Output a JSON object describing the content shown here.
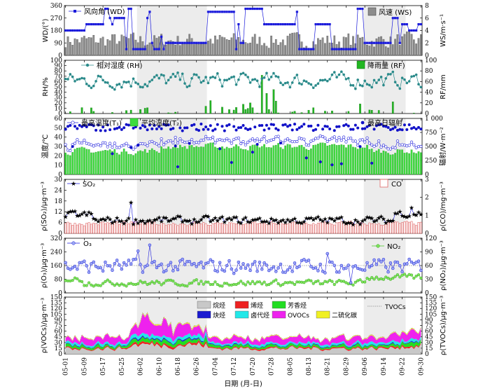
{
  "chart_data": {
    "type": "multi-panel time series",
    "xlabel": "日期 (月-日)",
    "x_ticks": [
      "05-01",
      "05-09",
      "05-17",
      "05-25",
      "06-02",
      "06-10",
      "06-18",
      "06-26",
      "07-04",
      "07-12",
      "07-20",
      "07-28",
      "08-05",
      "08-13",
      "08-21",
      "08-29",
      "09-06",
      "09-14",
      "09-22",
      "09-30"
    ],
    "shaded_periods": [
      [
        "06-01",
        "06-30"
      ],
      [
        "09-06",
        "09-23"
      ]
    ],
    "panels": [
      {
        "id": "wind",
        "ylabel_left": "WD/(°)",
        "ylim_left": [
          0,
          360
        ],
        "yticks_left": [
          "0",
          "90",
          "180",
          "270",
          "360"
        ],
        "ylabel_right": "WS/m·s⁻¹",
        "ylim_right": [
          0,
          8
        ],
        "yticks_right": [
          "0",
          "2",
          "4",
          "6",
          "8"
        ],
        "series": [
          {
            "name": "风向角 (WD)",
            "type": "line-marker",
            "axis": "left",
            "color": "#1a1adb"
          },
          {
            "name": "风速 (WS)",
            "type": "bar",
            "axis": "right",
            "color": "#808080"
          }
        ]
      },
      {
        "id": "rh",
        "ylabel_left": "RH/%",
        "ylim_left": [
          0,
          100
        ],
        "yticks_left": [
          "0",
          "10",
          "20",
          "30",
          "40",
          "50",
          "60",
          "70",
          "80",
          "90",
          "100"
        ],
        "ylabel_right": "RF/mm",
        "ylim_right": [
          0,
          100
        ],
        "yticks_right": [
          "0",
          "20",
          "40",
          "60",
          "80",
          "100"
        ],
        "series": [
          {
            "name": "相对湿度 (RH)",
            "type": "line-marker",
            "axis": "left",
            "color": "#2a8a8a"
          },
          {
            "name": "降雨量 (RF)",
            "type": "bar",
            "axis": "right",
            "color": "#22b722"
          }
        ]
      },
      {
        "id": "temp",
        "ylabel_left": "温度/℃",
        "ylim_left": [
          0,
          60
        ],
        "yticks_left": [
          "0",
          "10",
          "20",
          "30",
          "40",
          "50",
          "60"
        ],
        "ylabel_right": "辐射/W·m⁻²",
        "ylim_right": [
          0,
          1000
        ],
        "yticks_right": [
          "0",
          "250",
          "500",
          "750",
          "1 000"
        ],
        "series": [
          {
            "name": "最高温度(T₁)",
            "type": "line-marker",
            "axis": "left",
            "color": "#1a1adb"
          },
          {
            "name": "平均温度(T₂)",
            "type": "bar",
            "axis": "left",
            "color": "#3ddc3d"
          },
          {
            "name": "最高日辐射",
            "type": "scatter",
            "axis": "right",
            "color": "#1010c8"
          }
        ]
      },
      {
        "id": "so2",
        "ylabel_left": "ρ(SO₂)/μg·m⁻³",
        "ylim_left": [
          0,
          30
        ],
        "yticks_left": [
          "0",
          "6",
          "12",
          "18",
          "24",
          "30"
        ],
        "ylabel_right": "ρ(CO)/mg·m⁻³",
        "ylim_right": [
          0,
          3
        ],
        "yticks_right": [
          "0",
          "1",
          "2",
          "3"
        ],
        "series": [
          {
            "name": "SO₂",
            "type": "line-marker",
            "axis": "left",
            "color": "#1a1adb"
          },
          {
            "name": "CO",
            "type": "bar",
            "axis": "right",
            "color": "#e88b8b"
          }
        ]
      },
      {
        "id": "o3",
        "ylabel_left": "ρ(O₃)/μg·m⁻³",
        "ylim_left": [
          0,
          320
        ],
        "yticks_left": [
          "0",
          "80",
          "160",
          "240",
          "320"
        ],
        "ylabel_right": "ρ(NO₂)/μg·m⁻³",
        "ylim_right": [
          0,
          120
        ],
        "yticks_right": [
          "0",
          "30",
          "60",
          "90",
          "120"
        ],
        "reference_line": {
          "axis": "left",
          "value": 160
        },
        "series": [
          {
            "name": "O₃",
            "type": "line-marker",
            "axis": "left",
            "color": "#1a1adb"
          },
          {
            "name": "NO₂",
            "type": "line-marker",
            "axis": "right",
            "color": "#44cc22"
          }
        ]
      },
      {
        "id": "vocs",
        "ylabel_left": "ρ(VOCs)/μg·m⁻³",
        "ylim_left": [
          0,
          150
        ],
        "yticks_left": [
          "0",
          "15",
          "30",
          "45",
          "60",
          "75",
          "90",
          "105",
          "120",
          "135",
          "150"
        ],
        "ylabel_right": "ρ(TVOCs)/μg·m⁻³",
        "ylim_right": [
          0,
          150
        ],
        "yticks_right": [
          "0",
          "15",
          "30",
          "45",
          "60",
          "75",
          "90",
          "105",
          "120",
          "135",
          "150"
        ],
        "series": [
          {
            "name": "烷烃",
            "type": "stacked-area",
            "color": "#c8c8c8"
          },
          {
            "name": "烯烃",
            "type": "stacked-area",
            "color": "#ee2222"
          },
          {
            "name": "芳香烃",
            "type": "stacked-area",
            "color": "#22dd22"
          },
          {
            "name": "炔烃",
            "type": "stacked-area",
            "color": "#1a1ad0"
          },
          {
            "name": "卤代烃",
            "type": "stacked-area",
            "color": "#22e8e8"
          },
          {
            "name": "OVOCs",
            "type": "stacked-area",
            "color": "#ee22ee"
          },
          {
            "name": "二硫化碳",
            "type": "stacked-area",
            "color": "#f0f022"
          },
          {
            "name": "TVOCs",
            "type": "line",
            "color": "#888888"
          }
        ]
      }
    ]
  }
}
